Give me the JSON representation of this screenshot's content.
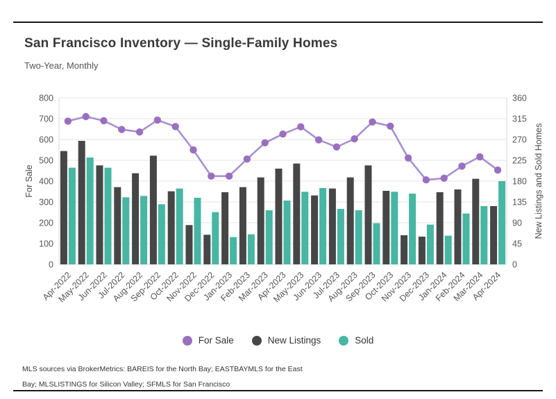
{
  "header": {
    "title": "San Francisco Inventory — Single-Family Homes",
    "subtitle": "Two-Year, Monthly"
  },
  "chart_data": {
    "type": "bar",
    "subtype": "grouped bars with overlay line",
    "categories": [
      "Apr-2022",
      "May-2022",
      "Jun-2022",
      "Jul-2022",
      "Aug-2022",
      "Sep-2022",
      "Oct-2022",
      "Nov-2022",
      "Dec-2022",
      "Jan-2023",
      "Feb-2023",
      "Mar-2023",
      "Apr-2023",
      "May-2023",
      "Jun-2023",
      "Jul-2023",
      "Aug-2023",
      "Sep-2023",
      "Oct-2023",
      "Nov-2023",
      "Dec-2023",
      "Jan-2024",
      "Feb-2024",
      "Mar-2024",
      "Apr-2024"
    ],
    "series": [
      {
        "name": "For Sale",
        "type": "line",
        "axis": "left",
        "color": "#9a6fc0",
        "line_color": "#a78fd2",
        "values": [
          688,
          710,
          690,
          648,
          636,
          693,
          662,
          550,
          424,
          424,
          506,
          584,
          626,
          661,
          598,
          564,
          603,
          684,
          664,
          511,
          406,
          414,
          472,
          517,
          453
        ]
      },
      {
        "name": "New Listings",
        "type": "bar",
        "axis": "right",
        "color": "#464646",
        "values": [
          245,
          267,
          214,
          167,
          197,
          235,
          158,
          85,
          64,
          156,
          167,
          188,
          207,
          218,
          149,
          164,
          188,
          214,
          159,
          63,
          60,
          156,
          162,
          185,
          126
        ]
      },
      {
        "name": "Sold",
        "type": "bar",
        "axis": "right",
        "color": "#47b6a3",
        "values": [
          209,
          231,
          209,
          145,
          148,
          130,
          164,
          144,
          113,
          59,
          65,
          117,
          138,
          157,
          165,
          120,
          117,
          89,
          157,
          153,
          86,
          62,
          110,
          126,
          180
        ]
      }
    ],
    "left_axis": {
      "label": "For Sale",
      "min": 0,
      "max": 800,
      "tick_labels": [
        "0",
        "100",
        "200",
        "300",
        "400",
        "500",
        "600",
        "700",
        "800"
      ]
    },
    "right_axis": {
      "label": "New Listings and Sold Homes",
      "min": 0,
      "max": 360,
      "tick_labels": [
        "0",
        "45",
        "90",
        "135",
        "180",
        "225",
        "270",
        "315",
        "360"
      ]
    },
    "grid": true,
    "legend_position": "bottom"
  },
  "footer": {
    "line1": "MLS sources via BrokerMetrics: BAREIS for the North Bay; EASTBAYMLS for the East",
    "line2": "Bay; MLSLISTINGS for Silicon Valley; SFMLS for San Francisco"
  },
  "colors": {
    "for_sale": "#9a6fc0",
    "for_sale_line": "#a78fd2",
    "new_listings": "#464646",
    "sold": "#47b6a3",
    "grid": "#e4e4e4",
    "rule": "#161616"
  }
}
